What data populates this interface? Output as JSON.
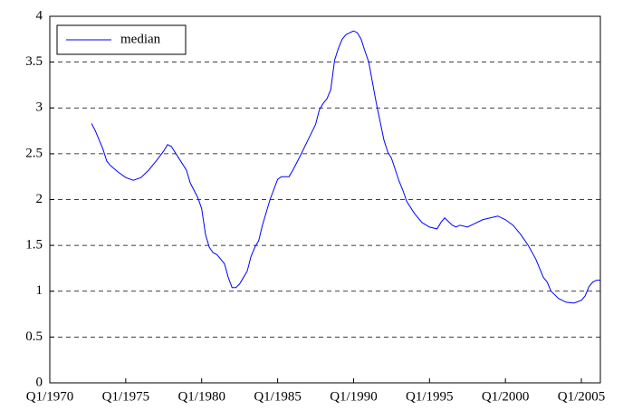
{
  "chart_data": {
    "type": "line",
    "x": [
      1972.75,
      1973.0,
      1973.25,
      1973.5,
      1973.75,
      1974.0,
      1974.5,
      1975.0,
      1975.5,
      1976.0,
      1976.5,
      1977.0,
      1977.5,
      1977.75,
      1978.0,
      1978.5,
      1979.0,
      1979.25,
      1979.5,
      1979.75,
      1980.0,
      1980.25,
      1980.5,
      1980.75,
      1981.0,
      1981.25,
      1981.5,
      1981.75,
      1982.0,
      1982.25,
      1982.5,
      1982.75,
      1983.0,
      1983.25,
      1983.5,
      1983.75,
      1984.0,
      1984.5,
      1985.0,
      1985.25,
      1985.75,
      1986.0,
      1986.5,
      1987.0,
      1987.5,
      1987.75,
      1988.0,
      1988.25,
      1988.5,
      1988.75,
      1989.0,
      1989.25,
      1989.5,
      1989.75,
      1990.0,
      1990.25,
      1990.5,
      1990.75,
      1991.0,
      1991.5,
      1992.0,
      1992.25,
      1992.5,
      1993.0,
      1993.25,
      1993.5,
      1994.0,
      1994.5,
      1995.0,
      1995.5,
      1995.75,
      1996.0,
      1996.5,
      1996.75,
      1997.0,
      1997.5,
      1998.0,
      1998.5,
      1999.0,
      1999.5,
      2000.0,
      2000.5,
      2001.0,
      2001.5,
      2002.0,
      2002.5,
      2002.75,
      2003.0,
      2003.5,
      2004.0,
      2004.5,
      2005.0,
      2005.25,
      2005.5,
      2005.75,
      2006.0,
      2006.25
    ],
    "series": [
      {
        "name": "median",
        "color": "#0000ff",
        "values": [
          2.83,
          2.75,
          2.65,
          2.55,
          2.42,
          2.37,
          2.3,
          2.24,
          2.21,
          2.24,
          2.32,
          2.42,
          2.53,
          2.6,
          2.58,
          2.45,
          2.32,
          2.18,
          2.1,
          2.02,
          1.9,
          1.62,
          1.48,
          1.42,
          1.4,
          1.35,
          1.3,
          1.15,
          1.04,
          1.04,
          1.08,
          1.15,
          1.22,
          1.38,
          1.48,
          1.55,
          1.72,
          2.0,
          2.22,
          2.25,
          2.25,
          2.32,
          2.48,
          2.65,
          2.82,
          2.98,
          3.05,
          3.1,
          3.2,
          3.52,
          3.65,
          3.75,
          3.8,
          3.82,
          3.84,
          3.82,
          3.75,
          3.62,
          3.5,
          3.05,
          2.65,
          2.52,
          2.45,
          2.2,
          2.1,
          1.98,
          1.85,
          1.75,
          1.7,
          1.68,
          1.75,
          1.8,
          1.72,
          1.7,
          1.72,
          1.7,
          1.74,
          1.78,
          1.8,
          1.82,
          1.78,
          1.72,
          1.62,
          1.5,
          1.35,
          1.15,
          1.1,
          1.0,
          0.92,
          0.88,
          0.87,
          0.9,
          0.95,
          1.05,
          1.1,
          1.12,
          1.12
        ]
      }
    ],
    "xlim": [
      1970,
      2006.25
    ],
    "xticks": [
      {
        "value": 1970,
        "label": "Q1/1970"
      },
      {
        "value": 1975,
        "label": "Q1/1975"
      },
      {
        "value": 1980,
        "label": "Q1/1980"
      },
      {
        "value": 1985,
        "label": "Q1/1985"
      },
      {
        "value": 1990,
        "label": "Q1/1990"
      },
      {
        "value": 1995,
        "label": "Q1/1995"
      },
      {
        "value": 2000,
        "label": "Q1/2000"
      },
      {
        "value": 2005,
        "label": "Q1/2005"
      }
    ],
    "ylim": [
      0,
      4
    ],
    "yticks": [
      0,
      0.5,
      1,
      1.5,
      2,
      2.5,
      3,
      3.5,
      4
    ],
    "grid": true,
    "legend": "upper-left"
  }
}
